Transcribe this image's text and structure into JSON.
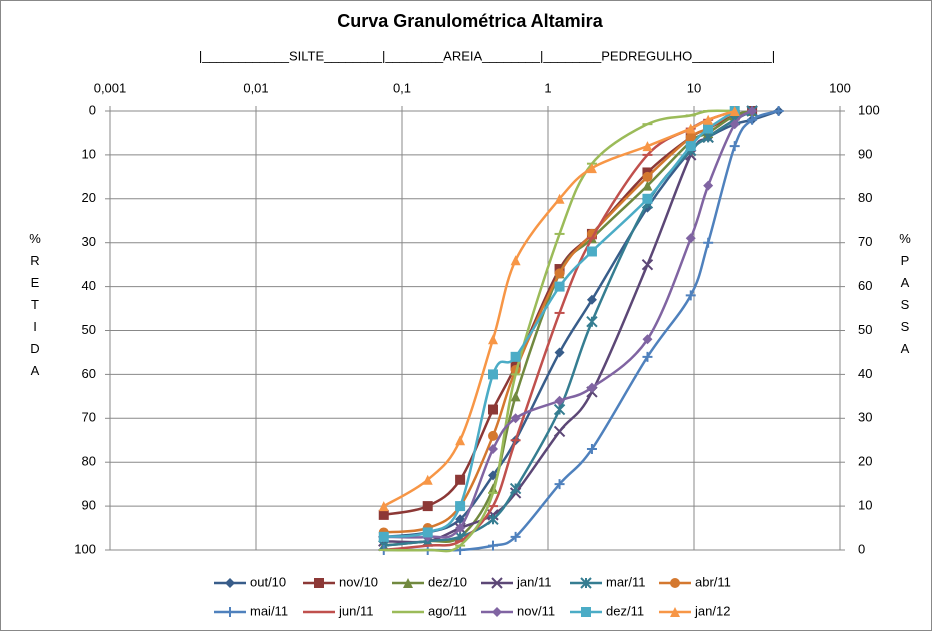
{
  "chart_data": {
    "type": "line",
    "title": "Curva Granulométrica Altamira",
    "annotation": "|____________SILTE________|________AREIA________|________PEDREGULHO___________|",
    "y_label": "% RETIDA",
    "y2_label": "% PASSA",
    "x_log": true,
    "y_inverted": true,
    "grid": true,
    "legend": "bottom",
    "x": [
      0.075,
      0.15,
      0.25,
      0.42,
      0.6,
      1.2,
      2.0,
      4.8,
      9.5,
      12.5,
      19,
      25,
      38
    ],
    "xlim": [
      0.001,
      100
    ],
    "xticks": [
      {
        "value": 0.001,
        "label": "0,001"
      },
      {
        "value": 0.01,
        "label": "0,01"
      },
      {
        "value": 0.1,
        "label": "0,1"
      },
      1,
      10,
      100
    ],
    "ylim": [
      0,
      100
    ],
    "yticks": [
      0,
      10,
      20,
      30,
      40,
      50,
      60,
      70,
      80,
      90,
      100
    ],
    "y2lim": [
      0,
      100
    ],
    "y2ticks": [
      0,
      10,
      20,
      30,
      40,
      50,
      60,
      70,
      80,
      90,
      100
    ],
    "series": [
      {
        "name": "out/10",
        "color": "#385d8a",
        "marker": "diamond",
        "values": [
          97,
          96,
          93,
          83,
          75,
          55,
          43,
          22,
          9,
          6,
          3,
          2,
          0
        ]
      },
      {
        "name": "nov/10",
        "color": "#8c3836",
        "marker": "square",
        "values": [
          92,
          90,
          84,
          68,
          58,
          36,
          28,
          14,
          6,
          4,
          1,
          0,
          null
        ]
      },
      {
        "name": "dez/10",
        "color": "#71893f",
        "marker": "triangle",
        "values": [
          99,
          98,
          97,
          86,
          65,
          37,
          29,
          17,
          7,
          5,
          1,
          0,
          null
        ]
      },
      {
        "name": "jan/11",
        "color": "#5c4776",
        "marker": "x",
        "values": [
          98,
          98,
          95,
          92,
          87,
          73,
          64,
          35,
          10,
          6,
          2,
          0,
          null
        ]
      },
      {
        "name": "mar/11",
        "color": "#357d91",
        "marker": "asterisk",
        "values": [
          99,
          98,
          97,
          93,
          86,
          68,
          48,
          21,
          9,
          6,
          2,
          0,
          null
        ]
      },
      {
        "name": "abr/11",
        "color": "#d4782f",
        "marker": "circle",
        "values": [
          96,
          95,
          90,
          74,
          59,
          37,
          28,
          15,
          6,
          4,
          0,
          null,
          null
        ]
      },
      {
        "name": "mai/11",
        "color": "#4f81bd",
        "marker": "plus",
        "values": [
          100,
          100,
          100,
          99,
          97,
          85,
          77,
          56,
          42,
          30,
          8,
          2,
          0
        ]
      },
      {
        "name": "jun/11",
        "color": "#c0504d",
        "marker": "dash",
        "values": [
          100,
          99,
          98,
          90,
          75,
          46,
          29,
          10,
          4,
          2,
          0,
          null,
          null
        ]
      },
      {
        "name": "ago/11",
        "color": "#9bbb59",
        "marker": "dash",
        "values": [
          100,
          100,
          99,
          87,
          60,
          28,
          12,
          3,
          1,
          0,
          0,
          null,
          null
        ]
      },
      {
        "name": "nov/11",
        "color": "#8064a2",
        "marker": "diamond",
        "values": [
          97,
          97,
          95,
          77,
          70,
          66,
          63,
          52,
          29,
          17,
          3,
          0,
          null
        ]
      },
      {
        "name": "dez/11",
        "color": "#4bacc6",
        "marker": "square",
        "values": [
          97,
          96,
          90,
          60,
          56,
          40,
          32,
          20,
          8,
          4,
          0,
          null,
          null
        ]
      },
      {
        "name": "jan/12",
        "color": "#f79646",
        "marker": "triangle",
        "values": [
          90,
          84,
          75,
          52,
          34,
          20,
          13,
          8,
          4,
          2,
          0,
          null,
          null
        ]
      }
    ]
  }
}
